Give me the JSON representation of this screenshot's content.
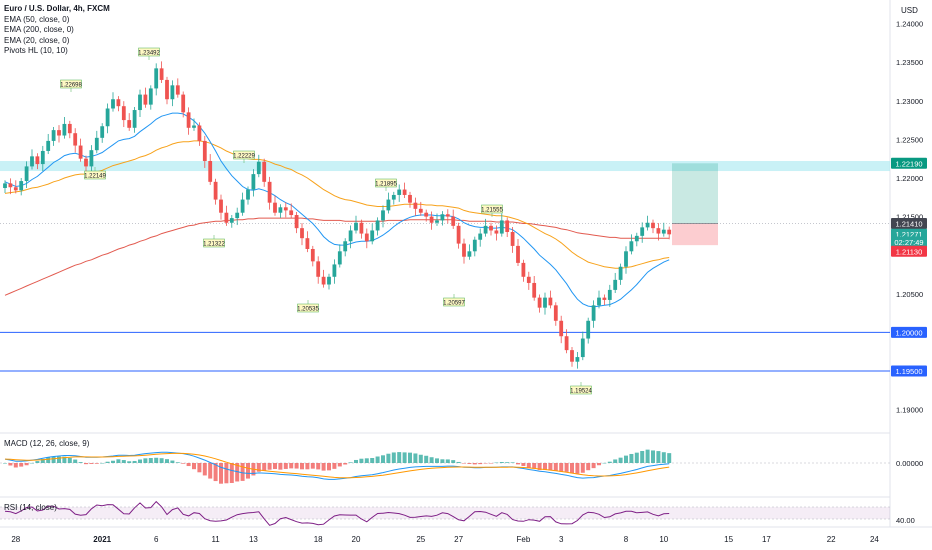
{
  "legend": {
    "title": "Euro / U.S. Dollar, 4h, FXCM",
    "indicators": [
      "EMA (50, close, 0)",
      "EMA (200, close, 0)",
      "EMA (20, close, 0)",
      "Pivots HL (10, 10)"
    ]
  },
  "price_axis": {
    "currency": "USD",
    "ticks": [
      "1.24000",
      "1.23500",
      "1.23000",
      "1.22500",
      "1.22000",
      "1.21500",
      "1.20500",
      "1.19000"
    ],
    "tick_values": [
      1.24,
      1.235,
      1.23,
      1.225,
      1.22,
      1.215,
      1.205,
      1.19
    ]
  },
  "price_badges": [
    {
      "label": "1.22190",
      "value": 1.2219,
      "color": "#089981",
      "text_color": "#ffffff"
    },
    {
      "label": "1.21410",
      "value": 1.2141,
      "color": "#434651",
      "text_color": "#ffffff"
    },
    {
      "label": "1.21271",
      "value": 1.21271,
      "color": "#26a69a",
      "text_color": "#ffffff"
    },
    {
      "label": "02:27:49",
      "value": 1.2117,
      "color": "#26a69a",
      "text_color": "#ffffff"
    },
    {
      "label": "1.21130",
      "value": 1.2105,
      "color": "#f23645",
      "text_color": "#ffffff"
    },
    {
      "label": "1.20000",
      "value": 1.2,
      "color": "#2962ff",
      "text_color": "#ffffff"
    },
    {
      "label": "1.19500",
      "value": 1.195,
      "color": "#2962ff",
      "text_color": "#ffffff"
    }
  ],
  "time_axis": {
    "labels": [
      {
        "label": "28",
        "bar": 2
      },
      {
        "label": "2021",
        "bar": 18,
        "bold": true
      },
      {
        "label": "6",
        "bar": 28
      },
      {
        "label": "11",
        "bar": 39
      },
      {
        "label": "13",
        "bar": 46
      },
      {
        "label": "18",
        "bar": 58
      },
      {
        "label": "20",
        "bar": 65
      },
      {
        "label": "25",
        "bar": 77
      },
      {
        "label": "27",
        "bar": 84
      },
      {
        "label": "Feb",
        "bar": 96
      },
      {
        "label": "3",
        "bar": 103
      },
      {
        "label": "8",
        "bar": 115
      },
      {
        "label": "10",
        "bar": 122
      },
      {
        "label": "15",
        "bar": 134
      },
      {
        "label": "17",
        "bar": 141
      },
      {
        "label": "22",
        "bar": 153
      },
      {
        "label": "24",
        "bar": 161
      }
    ]
  },
  "pivots": [
    {
      "label": "1.22698",
      "type": "high"
    },
    {
      "label": "1.23492",
      "type": "high"
    },
    {
      "label": "1.22229",
      "type": "high"
    },
    {
      "label": "1.21895",
      "type": "high"
    },
    {
      "label": "1.21555",
      "type": "high"
    },
    {
      "label": "1.22149",
      "type": "low"
    },
    {
      "label": "1.21322",
      "type": "low"
    },
    {
      "label": "1.20535",
      "type": "low"
    },
    {
      "label": "1.20597",
      "type": "low"
    },
    {
      "label": "1.19524",
      "type": "low"
    }
  ],
  "macd": {
    "label": "MACD (12, 26, close, 9)",
    "zero_label": "0.00000"
  },
  "rsi": {
    "label": "RSI (14, close)",
    "tick_label": "40.00"
  },
  "colors": {
    "up": "#26a69a",
    "down": "#ef5350",
    "ema20": "#2196f3",
    "ema50": "#f7a21b",
    "ema200": "#e25a4f",
    "rsi": "#7e1f86",
    "macd": "#2196f3",
    "signal": "#ff9800",
    "zone": "#b2ebf2",
    "hline": "#2962ff"
  },
  "chart_data": {
    "type": "candlestick",
    "title": "Euro / U.S. Dollar, 4h, FXCM",
    "symbol": "EURUSD",
    "timeframe": "4h",
    "x_labels": [
      "28",
      "2021",
      "6",
      "11",
      "13",
      "18",
      "20",
      "25",
      "27",
      "Feb",
      "3",
      "8",
      "10",
      "15",
      "17",
      "22",
      "24"
    ],
    "ylim": [
      1.188,
      1.2415
    ],
    "y_ticks": [
      1.24,
      1.235,
      1.23,
      1.225,
      1.22,
      1.215,
      1.205,
      1.19
    ],
    "horizontal_levels": [
      1.2,
      1.195
    ],
    "resistance_zone": [
      1.2209,
      1.2222
    ],
    "position": {
      "entry": 1.2141,
      "target": 1.2219,
      "stop": 1.2113
    },
    "closes": [
      1.2193,
      1.2188,
      1.2184,
      1.2196,
      1.2215,
      1.2228,
      1.2218,
      1.2235,
      1.2248,
      1.2262,
      1.2255,
      1.227,
      1.2258,
      1.2242,
      1.2225,
      1.2215,
      1.2236,
      1.2252,
      1.2267,
      1.229,
      1.2302,
      1.2293,
      1.2275,
      1.2265,
      1.2288,
      1.2308,
      1.2295,
      1.2316,
      1.2342,
      1.2327,
      1.2302,
      1.232,
      1.2308,
      1.2285,
      1.2265,
      1.2268,
      1.2248,
      1.2222,
      1.2195,
      1.2172,
      1.2155,
      1.2142,
      1.2148,
      1.2155,
      1.2172,
      1.2185,
      1.2205,
      1.2221,
      1.2195,
      1.2168,
      1.2155,
      1.2162,
      1.2158,
      1.2152,
      1.2135,
      1.2122,
      1.2108,
      1.2092,
      1.2072,
      1.2062,
      1.2072,
      1.2088,
      1.2105,
      1.2118,
      1.2132,
      1.2142,
      1.2128,
      1.2118,
      1.2132,
      1.2145,
      1.2158,
      1.2172,
      1.2178,
      1.2185,
      1.2178,
      1.2168,
      1.216,
      1.2155,
      1.215,
      1.2142,
      1.2145,
      1.2153,
      1.215,
      1.2138,
      1.2115,
      1.2098,
      1.2105,
      1.212,
      1.2128,
      1.2138,
      1.2132,
      1.2128,
      1.2145,
      1.213,
      1.2112,
      1.209,
      1.2072,
      1.2064,
      1.2045,
      1.2032,
      1.2045,
      1.2035,
      1.2015,
      1.1995,
      1.1977,
      1.1962,
      1.1968,
      1.1992,
      1.2015,
      1.2035,
      1.2045,
      1.2042,
      1.2055,
      1.2068,
      1.2085,
      1.2105,
      1.2118,
      1.2125,
      1.2136,
      1.2142,
      1.2135,
      1.2128,
      1.2133,
      1.2127
    ],
    "ema20": [
      1.2195,
      1.2192,
      1.2189,
      1.219,
      1.2193,
      1.2198,
      1.2202,
      1.2208,
      1.2214,
      1.222,
      1.2224,
      1.2229,
      1.2231,
      1.2232,
      1.223,
      1.2227,
      1.2228,
      1.223,
      1.2233,
      1.2238,
      1.2243,
      1.2248,
      1.225,
      1.2251,
      1.2254,
      1.226,
      1.2265,
      1.227,
      1.2276,
      1.228,
      1.2282,
      1.2284,
      1.2284,
      1.2283,
      1.2279,
      1.2274,
      1.2267,
      1.2258,
      1.2247,
      1.2235,
      1.2222,
      1.2212,
      1.2203,
      1.2196,
      1.2189,
      1.2185,
      1.2184,
      1.2186,
      1.2184,
      1.2181,
      1.2177,
      1.2172,
      1.2168,
      1.2165,
      1.2159,
      1.2153,
      1.2147,
      1.2141,
      1.2133,
      1.2124,
      1.2118,
      1.2114,
      1.2113,
      1.2113,
      1.2115,
      1.2117,
      1.2118,
      1.2118,
      1.2119,
      1.2122,
      1.2126,
      1.2131,
      1.2137,
      1.2142,
      1.2146,
      1.2149,
      1.2151,
      1.2152,
      1.2152,
      1.2152,
      1.2151,
      1.2151,
      1.2151,
      1.215,
      1.2147,
      1.2142,
      1.2139,
      1.2137,
      1.2136,
      1.2136,
      1.2135,
      1.2135,
      1.2136,
      1.2135,
      1.2133,
      1.2128,
      1.2122,
      1.2115,
      1.2108,
      1.21,
      1.2094,
      1.2088,
      1.2081,
      1.2072,
      1.2063,
      1.2052,
      1.2043,
      1.2037,
      1.2034,
      1.2033,
      1.2034,
      1.2035,
      1.2036,
      1.2039,
      1.2043,
      1.2049,
      1.2055,
      1.2062,
      1.207,
      1.2078,
      1.2083,
      1.2087,
      1.2091,
      1.2094
    ],
    "ema50": [
      1.218,
      1.2181,
      1.2182,
      1.2183,
      1.2185,
      1.2187,
      1.2188,
      1.219,
      1.2192,
      1.2195,
      1.2197,
      1.22,
      1.2202,
      1.2204,
      1.2205,
      1.2205,
      1.2206,
      1.2208,
      1.221,
      1.2213,
      1.2216,
      1.2218,
      1.222,
      1.2222,
      1.2224,
      1.2227,
      1.2229,
      1.2232,
      1.2236,
      1.2239,
      1.2241,
      1.2244,
      1.2246,
      1.2247,
      1.2247,
      1.2248,
      1.2248,
      1.2247,
      1.2245,
      1.2242,
      1.2239,
      1.2235,
      1.2232,
      1.2229,
      1.2227,
      1.2225,
      1.2224,
      1.2224,
      1.2223,
      1.2221,
      1.2218,
      1.2216,
      1.2213,
      1.2211,
      1.2207,
      1.2204,
      1.22,
      1.2195,
      1.219,
      1.2185,
      1.2181,
      1.2177,
      1.2174,
      1.2172,
      1.2171,
      1.2169,
      1.2167,
      1.2165,
      1.2164,
      1.2163,
      1.2163,
      1.2163,
      1.2164,
      1.2165,
      1.2166,
      1.2166,
      1.2166,
      1.2166,
      1.2165,
      1.2165,
      1.2164,
      1.2164,
      1.2163,
      1.2162,
      1.2161,
      1.2158,
      1.2156,
      1.2155,
      1.2154,
      1.2153,
      1.2152,
      1.2151,
      1.2151,
      1.215,
      1.2148,
      1.2146,
      1.2143,
      1.214,
      1.2136,
      1.2132,
      1.2128,
      1.2125,
      1.2121,
      1.2116,
      1.211,
      1.2104,
      1.2099,
      1.2095,
      1.2091,
      1.2089,
      1.2087,
      1.2085,
      1.2084,
      1.2083,
      1.2083,
      1.2084,
      1.2085,
      1.2087,
      1.2089,
      1.2091,
      1.2093,
      1.2094,
      1.2096,
      1.2097
    ],
    "ema200": [
      1.2048,
      1.2051,
      1.2054,
      1.2057,
      1.206,
      1.2063,
      1.2066,
      1.2069,
      1.2072,
      1.2075,
      1.2078,
      1.2081,
      1.2084,
      1.2087,
      1.2089,
      1.2092,
      1.2094,
      1.2097,
      1.21,
      1.2102,
      1.2105,
      1.2108,
      1.211,
      1.2113,
      1.2115,
      1.2118,
      1.212,
      1.2123,
      1.2125,
      1.2128,
      1.213,
      1.2132,
      1.2134,
      1.2136,
      1.2138,
      1.2139,
      1.2141,
      1.2142,
      1.2143,
      1.2144,
      1.2144,
      1.2145,
      1.2145,
      1.2146,
      1.2146,
      1.2147,
      1.2147,
      1.2148,
      1.2148,
      1.2148,
      1.2148,
      1.2148,
      1.2148,
      1.2148,
      1.2148,
      1.2148,
      1.2147,
      1.2147,
      1.2146,
      1.2145,
      1.2145,
      1.2145,
      1.2145,
      1.2144,
      1.2144,
      1.2144,
      1.2144,
      1.2144,
      1.2144,
      1.2144,
      1.2144,
      1.2145,
      1.2145,
      1.2145,
      1.2145,
      1.2146,
      1.2146,
      1.2146,
      1.2146,
      1.2146,
      1.2146,
      1.2146,
      1.2146,
      1.2146,
      1.2145,
      1.2145,
      1.2144,
      1.2144,
      1.2144,
      1.2144,
      1.2144,
      1.2143,
      1.2143,
      1.2143,
      1.2143,
      1.2142,
      1.2141,
      1.2141,
      1.214,
      1.2139,
      1.2138,
      1.2137,
      1.2136,
      1.2134,
      1.2133,
      1.2131,
      1.2129,
      1.2128,
      1.2127,
      1.2126,
      1.2125,
      1.2124,
      1.2123,
      1.2123,
      1.2122,
      1.2122,
      1.2122,
      1.2122,
      1.2122,
      1.2122,
      1.2122,
      1.2122,
      1.2122,
      1.2122
    ]
  }
}
